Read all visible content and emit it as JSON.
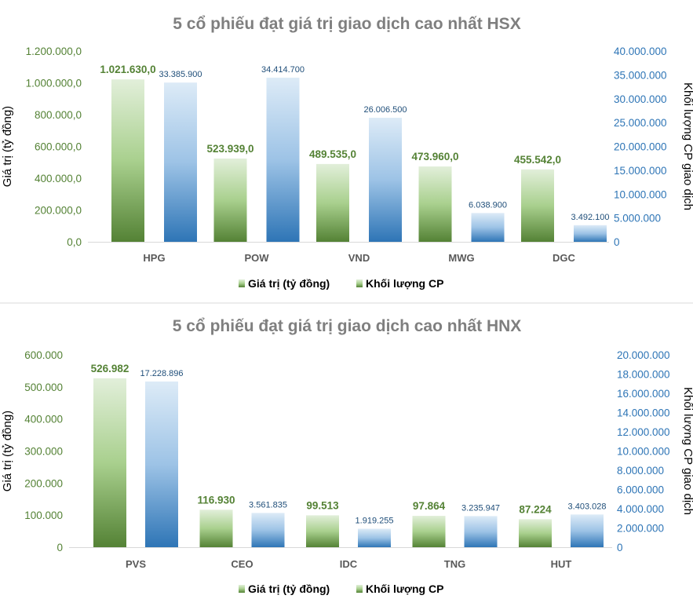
{
  "chart_data": [
    {
      "type": "bar",
      "title": "5 cổ phiếu đạt giá trị giao dịch cao nhất HSX",
      "categories": [
        "HPG",
        "POW",
        "VND",
        "MWG",
        "DGC"
      ],
      "series": [
        {
          "name": "Giá trị (tỷ đồng)",
          "axis": "left",
          "values": [
            1021630.0,
            523939.0,
            489535.0,
            473960.0,
            455542.0
          ],
          "labels": [
            "1.021.630,0",
            "523.939,0",
            "489.535,0",
            "473.960,0",
            "455.542,0"
          ],
          "color": "#548235"
        },
        {
          "name": "Khối lượng CP",
          "axis": "right",
          "values": [
            33385900,
            34414700,
            26006500,
            6038900,
            3492100
          ],
          "labels": [
            "33.385.900",
            "34.414.700",
            "26.006.500",
            "6.038.900",
            "3.492.100"
          ],
          "color": "#2e75b6"
        }
      ],
      "ylabel": "Giá trị (tỷ đồng)",
      "y2label": "Khối lượng CP giao dịch",
      "ylim": [
        0,
        1200000
      ],
      "y2lim": [
        0,
        40000000
      ],
      "yticks": [
        "0,0",
        "200.000,0",
        "400.000,0",
        "600.000,0",
        "800.000,0",
        "1.000.000,0",
        "1.200.000,0"
      ],
      "y2ticks": [
        "0",
        "5.000.000",
        "10.000.000",
        "15.000.000",
        "20.000.000",
        "25.000.000",
        "30.000.000",
        "35.000.000",
        "40.000.000"
      ],
      "legend": "bottom",
      "grid": false
    },
    {
      "type": "bar",
      "title": "5 cổ phiếu đạt giá trị giao dịch cao nhất HNX",
      "categories": [
        "PVS",
        "CEO",
        "IDC",
        "TNG",
        "HUT"
      ],
      "series": [
        {
          "name": "Giá trị (tỷ đồng)",
          "axis": "left",
          "values": [
            526982,
            116930,
            99513,
            97864,
            87224
          ],
          "labels": [
            "526.982",
            "116.930",
            "99.513",
            "97.864",
            "87.224"
          ],
          "color": "#548235"
        },
        {
          "name": "Khối lượng CP",
          "axis": "right",
          "values": [
            17228896,
            3561835,
            1919255,
            3235947,
            3403028
          ],
          "labels": [
            "17.228.896",
            "3.561.835",
            "1.919.255",
            "3.235.947",
            "3.403.028"
          ],
          "color": "#2e75b6"
        }
      ],
      "ylabel": "Giá trị (tỷ đồng)",
      "y2label": "Khối lượng CP giao dịch",
      "ylim": [
        0,
        600000
      ],
      "y2lim": [
        0,
        20000000
      ],
      "yticks": [
        "0",
        "100.000",
        "200.000",
        "300.000",
        "400.000",
        "500.000",
        "600.000"
      ],
      "y2ticks": [
        "0",
        "2.000.000",
        "4.000.000",
        "6.000.000",
        "8.000.000",
        "10.000.000",
        "12.000.000",
        "14.000.000",
        "16.000.000",
        "18.000.000",
        "20.000.000"
      ],
      "legend": "bottom",
      "grid": false
    }
  ]
}
